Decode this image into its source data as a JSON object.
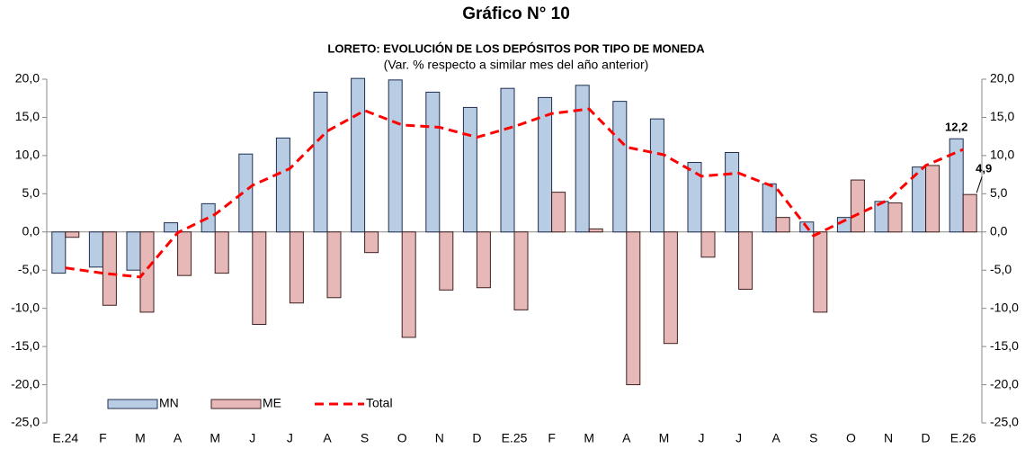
{
  "chart_data": {
    "type": "bar_line",
    "title": "Gráfico N° 10",
    "subtitle": "LORETO: EVOLUCIÓN DE LOS DEPÓSITOS POR TIPO DE MONEDA",
    "note": "(Var. % respecto a similar mes del año anterior)",
    "categories": [
      "E.24",
      "F",
      "M",
      "A",
      "M",
      "J",
      "J",
      "A",
      "S",
      "O",
      "N",
      "D",
      "E.25",
      "F",
      "M",
      "A",
      "M",
      "J",
      "J",
      "A",
      "S",
      "O",
      "N",
      "D",
      "E.26"
    ],
    "series": [
      {
        "name": "MN",
        "type": "bar",
        "color": "#b8cce4",
        "stroke": "#1f2f4f",
        "values": [
          -5.4,
          -4.6,
          -5.0,
          1.2,
          3.7,
          10.2,
          12.3,
          18.3,
          20.1,
          19.9,
          18.3,
          16.3,
          18.8,
          17.6,
          19.2,
          17.1,
          14.8,
          9.1,
          10.4,
          6.3,
          1.3,
          1.9,
          4.0,
          8.5,
          12.2
        ],
        "value_labels": [
          null,
          null,
          null,
          null,
          null,
          null,
          null,
          null,
          null,
          null,
          null,
          null,
          null,
          null,
          null,
          null,
          null,
          null,
          null,
          null,
          null,
          null,
          null,
          null,
          "12,2"
        ]
      },
      {
        "name": "ME",
        "type": "bar",
        "color": "#e6b9b8",
        "stroke": "#3f1f1f",
        "values": [
          -0.7,
          -9.6,
          -10.5,
          -5.7,
          -5.4,
          -12.1,
          -9.3,
          -8.6,
          -2.7,
          -13.8,
          -7.6,
          -7.3,
          -10.2,
          5.2,
          0.4,
          -20.0,
          -14.6,
          -3.3,
          -7.5,
          1.9,
          -10.5,
          6.8,
          3.8,
          8.7,
          4.9
        ],
        "value_labels": [
          null,
          null,
          null,
          null,
          null,
          null,
          null,
          null,
          null,
          null,
          null,
          null,
          null,
          null,
          null,
          null,
          null,
          null,
          null,
          null,
          null,
          null,
          null,
          null,
          "4,9"
        ]
      },
      {
        "name": "Total",
        "type": "line",
        "color": "#ff0000",
        "values": [
          -4.7,
          -5.4,
          -5.9,
          -0.1,
          2.3,
          6.1,
          8.3,
          13.2,
          15.9,
          14.0,
          13.7,
          12.4,
          13.8,
          15.5,
          16.1,
          11.1,
          10.1,
          7.3,
          7.7,
          5.8,
          -0.5,
          1.9,
          4.2,
          8.7,
          10.8
        ]
      }
    ],
    "ylim": [
      -25,
      20
    ],
    "yticks": [
      {
        "value": -25,
        "label": "-25,0"
      },
      {
        "value": -20,
        "label": "-20,0"
      },
      {
        "value": -15,
        "label": "-15,0"
      },
      {
        "value": -10,
        "label": "-10,0"
      },
      {
        "value": -5,
        "label": "-5,0"
      },
      {
        "value": 0,
        "label": "0,0"
      },
      {
        "value": 5,
        "label": "5,0"
      },
      {
        "value": 10,
        "label": "10,0"
      },
      {
        "value": 15,
        "label": "15,0"
      },
      {
        "value": 20,
        "label": "20,0"
      }
    ],
    "legend": "lower left"
  }
}
